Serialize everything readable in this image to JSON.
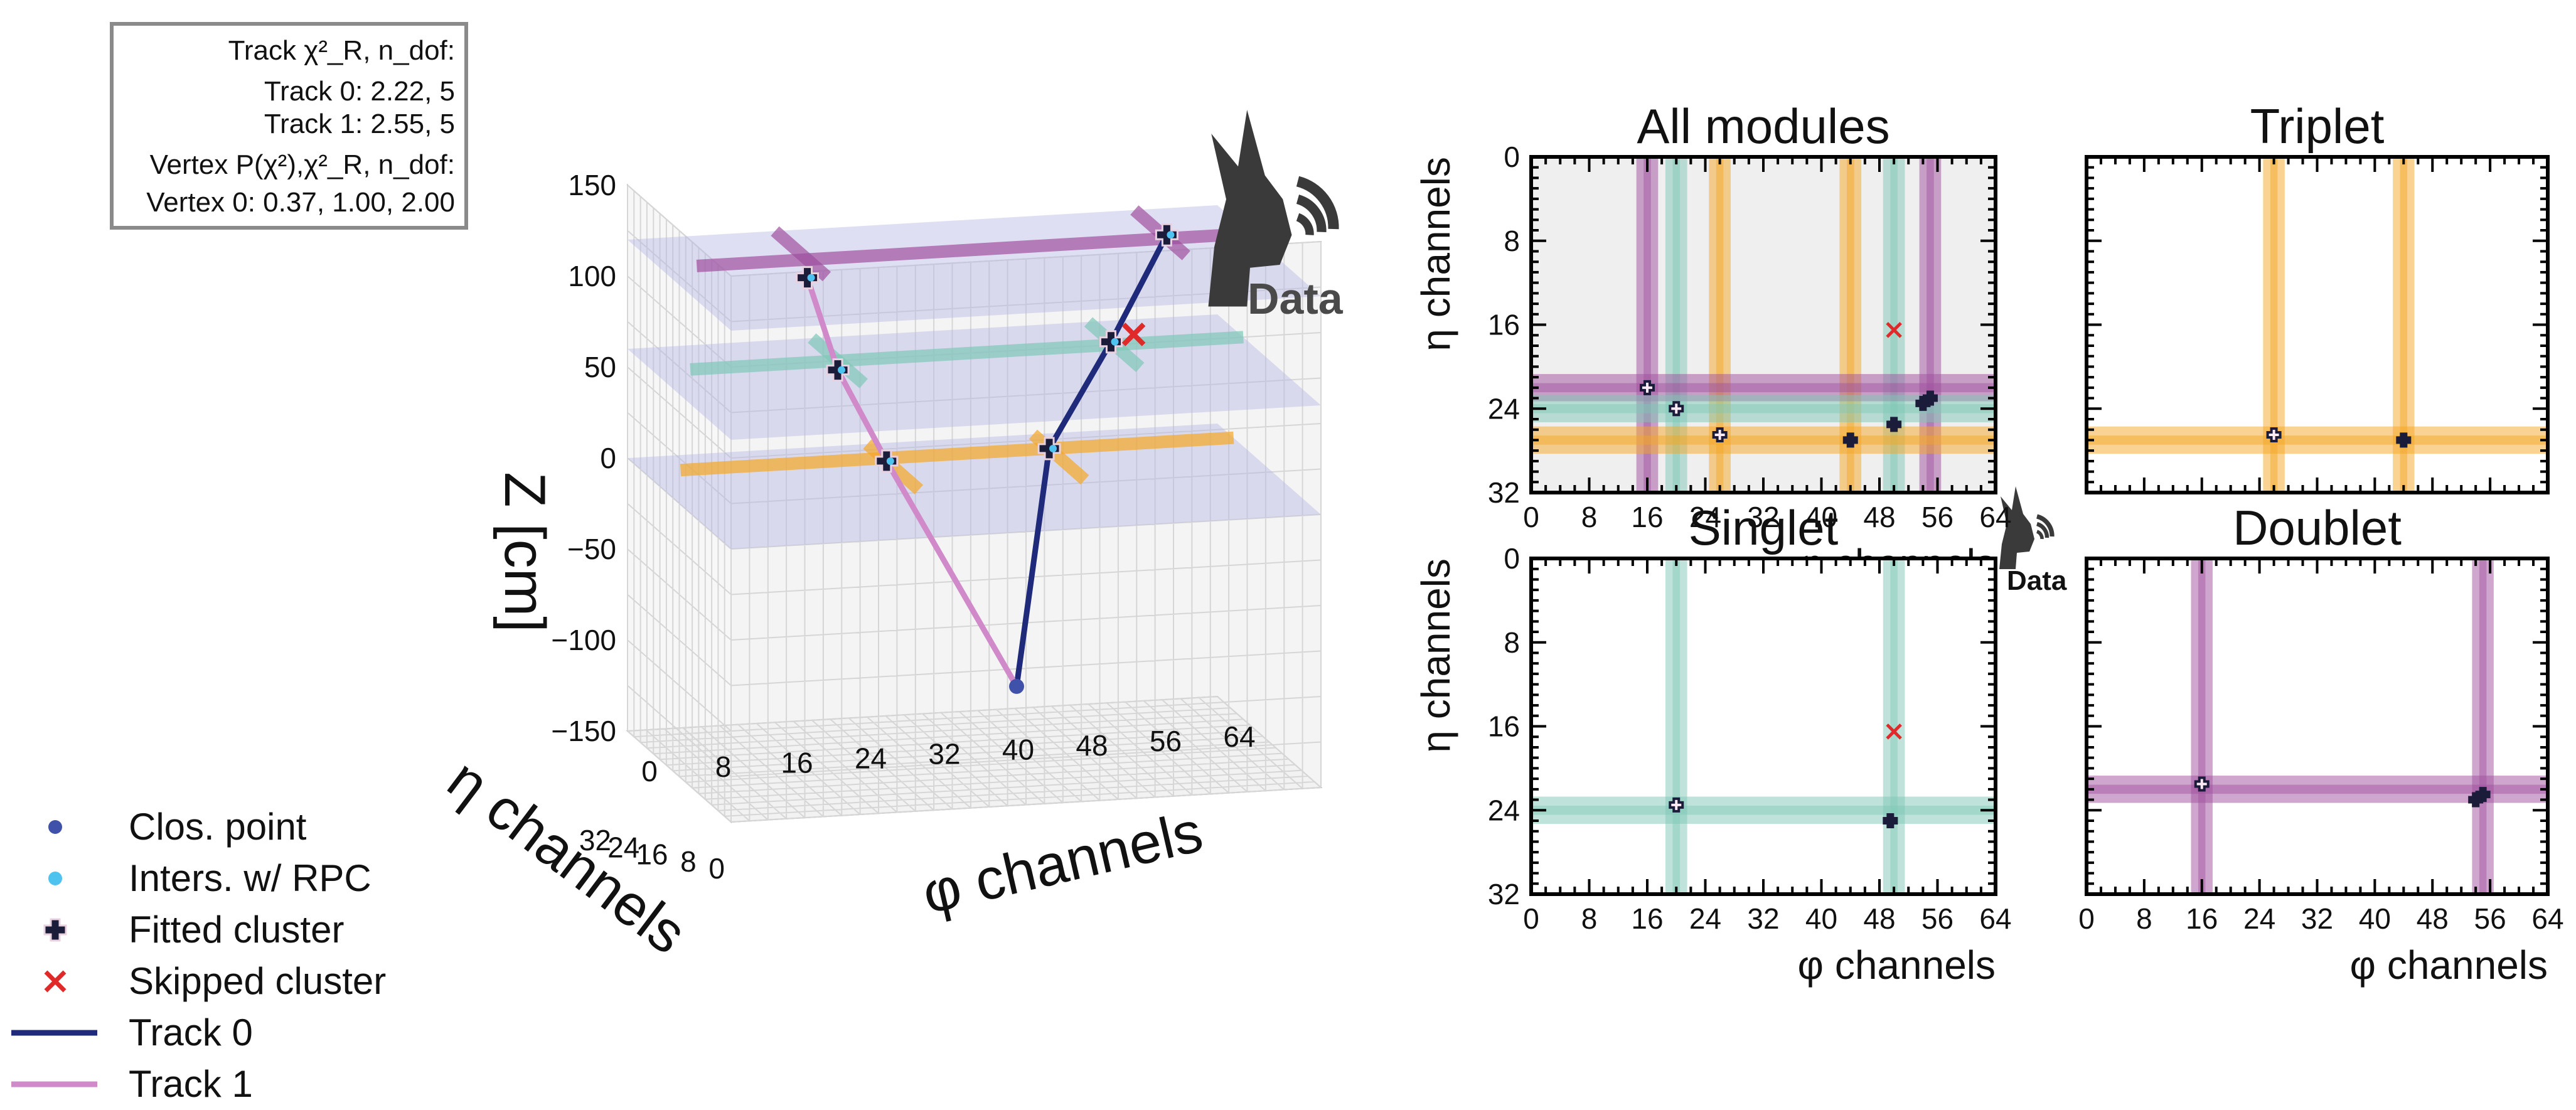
{
  "info_box": {
    "lines": [
      "Track χ²_R, n_dof:",
      "Track 0: 2.22, 5",
      "Track 1: 2.55, 5",
      "Vertex P(χ²),χ²_R, n_dof:",
      "Vertex 0: 0.37, 1.00, 2.00"
    ]
  },
  "logo": {
    "text": "Data",
    "icon": "jackal-head-icon"
  },
  "legend": [
    {
      "label": "Clos. point",
      "marker": "dot",
      "color": "#3f51a8"
    },
    {
      "label": "Inters. w/ RPC",
      "marker": "dot",
      "color": "#4ec3ef"
    },
    {
      "label": "Fitted cluster",
      "marker": "plus",
      "color": "#1b1b3a"
    },
    {
      "label": "Skipped cluster",
      "marker": "x",
      "color": "#e02a2a"
    },
    {
      "label": "Track 0",
      "marker": "line",
      "color": "#1f2a7a"
    },
    {
      "label": "Track 1",
      "marker": "line",
      "color": "#d08ac9"
    }
  ],
  "colors": {
    "orange": "#f5a623",
    "teal": "#7fc8b6",
    "purple": "#a0509e",
    "track0": "#1f2a7a",
    "track1": "#d08ac9",
    "skipped": "#e02a2a",
    "cluster": "#1b1b3a"
  },
  "chart_data": [
    {
      "type": "scatter3d",
      "zlabel": "Z [cm]",
      "xlabel": "φ channels",
      "ylabel": "η channels",
      "x_ticks": [
        "0",
        "8",
        "16",
        "24",
        "32",
        "40",
        "48",
        "56",
        "64"
      ],
      "y_ticks": [
        "0",
        "8",
        "16",
        "24",
        "32"
      ],
      "z_ticks": [
        "150",
        "100",
        "50",
        "0",
        "−50",
        "−100",
        "−150"
      ],
      "xlim": [
        0,
        64
      ],
      "ylim": [
        0,
        32
      ],
      "zlim": [
        -150,
        150
      ],
      "layers": [
        {
          "name": "triplet",
          "z": 0,
          "color": "orange"
        },
        {
          "name": "singlet",
          "z": 60,
          "color": "teal"
        },
        {
          "name": "doublet",
          "z": 120,
          "color": "purple"
        }
      ],
      "tracks": [
        {
          "name": "Track 0",
          "points": [
            {
              "phi": 38,
              "eta": 20,
              "z": -118
            },
            {
              "phi": 44,
              "eta": 27,
              "z": 0
            },
            {
              "phi": 50,
              "eta": 25,
              "z": 60
            },
            {
              "phi": 55,
              "eta": 22,
              "z": 122
            }
          ]
        },
        {
          "name": "Track 1",
          "points": [
            {
              "phi": 38,
              "eta": 20,
              "z": -118
            },
            {
              "phi": 26,
              "eta": 26,
              "z": 0
            },
            {
              "phi": 20,
              "eta": 24,
              "z": 55
            },
            {
              "phi": 16,
              "eta": 22,
              "z": 110
            }
          ]
        }
      ],
      "closest_point": {
        "phi": 38,
        "eta": 20,
        "z": -118
      },
      "skipped": [
        {
          "phi": 50,
          "eta": 18,
          "z": 75
        }
      ]
    },
    {
      "type": "strip-map",
      "title": "All modules",
      "xlabel": "φ channels",
      "ylabel": "η channels",
      "xlim": [
        0,
        64
      ],
      "ylim": [
        0,
        32
      ],
      "x_ticks": [
        "0",
        "8",
        "16",
        "24",
        "32",
        "40",
        "48",
        "56",
        "64"
      ],
      "y_ticks": [
        "0",
        "8",
        "16",
        "24",
        "32"
      ],
      "background": "gray",
      "vstrips": [
        {
          "phi": 16,
          "color": "purple"
        },
        {
          "phi": 20,
          "color": "teal"
        },
        {
          "phi": 26,
          "color": "orange"
        },
        {
          "phi": 44,
          "color": "orange"
        },
        {
          "phi": 50,
          "color": "teal"
        },
        {
          "phi": 55,
          "color": "purple"
        }
      ],
      "hstrips": [
        {
          "eta": 22,
          "color": "purple"
        },
        {
          "eta": 24,
          "color": "teal"
        },
        {
          "eta": 27,
          "color": "orange"
        }
      ],
      "clusters": [
        {
          "phi": 16,
          "eta": 22,
          "fill": "light"
        },
        {
          "phi": 20,
          "eta": 24,
          "fill": "light"
        },
        {
          "phi": 26,
          "eta": 26.5,
          "fill": "light"
        },
        {
          "phi": 44,
          "eta": 27,
          "fill": "dark"
        },
        {
          "phi": 50,
          "eta": 25.5,
          "fill": "dark"
        },
        {
          "phi": 54,
          "eta": 23.5,
          "fill": "dark"
        },
        {
          "phi": 55,
          "eta": 23,
          "fill": "dark"
        }
      ],
      "skipped": [
        {
          "phi": 50,
          "eta": 16.5
        }
      ]
    },
    {
      "type": "strip-map",
      "title": "Triplet",
      "xlim": [
        0,
        64
      ],
      "ylim": [
        0,
        32
      ],
      "background": "white",
      "vstrips": [
        {
          "phi": 26,
          "color": "orange"
        },
        {
          "phi": 44,
          "color": "orange"
        }
      ],
      "hstrips": [
        {
          "eta": 27,
          "color": "orange"
        }
      ],
      "clusters": [
        {
          "phi": 26,
          "eta": 26.5,
          "fill": "light"
        },
        {
          "phi": 44,
          "eta": 27,
          "fill": "dark"
        }
      ],
      "skipped": []
    },
    {
      "type": "strip-map",
      "title": "Singlet",
      "xlabel": "φ channels",
      "ylabel": "η channels",
      "xlim": [
        0,
        64
      ],
      "ylim": [
        0,
        32
      ],
      "x_ticks": [
        "0",
        "8",
        "16",
        "24",
        "32",
        "40",
        "48",
        "56",
        "64"
      ],
      "y_ticks": [
        "0",
        "8",
        "16",
        "24",
        "32"
      ],
      "background": "white",
      "vstrips": [
        {
          "phi": 20,
          "color": "teal"
        },
        {
          "phi": 50,
          "color": "teal"
        }
      ],
      "hstrips": [
        {
          "eta": 24,
          "color": "teal"
        }
      ],
      "clusters": [
        {
          "phi": 20,
          "eta": 23.5,
          "fill": "light"
        },
        {
          "phi": 49.5,
          "eta": 25,
          "fill": "dark"
        }
      ],
      "skipped": [
        {
          "phi": 50,
          "eta": 16.5
        }
      ]
    },
    {
      "type": "strip-map",
      "title": "Doublet",
      "xlabel": "φ channels",
      "xlim": [
        0,
        64
      ],
      "ylim": [
        0,
        32
      ],
      "x_ticks": [
        "0",
        "8",
        "16",
        "24",
        "32",
        "40",
        "48",
        "56",
        "64"
      ],
      "background": "white",
      "vstrips": [
        {
          "phi": 16,
          "color": "purple"
        },
        {
          "phi": 55,
          "color": "purple"
        }
      ],
      "hstrips": [
        {
          "eta": 22,
          "color": "purple"
        }
      ],
      "clusters": [
        {
          "phi": 16,
          "eta": 21.5,
          "fill": "light"
        },
        {
          "phi": 54,
          "eta": 23,
          "fill": "dark"
        },
        {
          "phi": 55,
          "eta": 22.5,
          "fill": "dark"
        }
      ],
      "skipped": []
    }
  ]
}
